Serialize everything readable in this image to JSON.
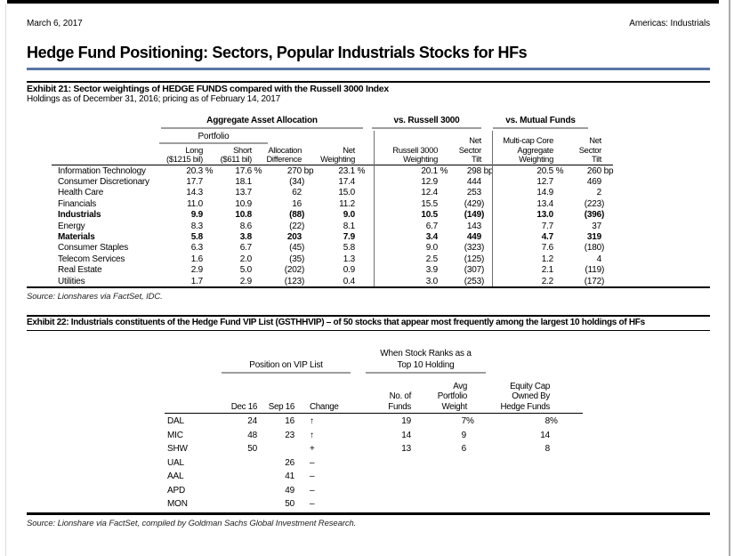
{
  "page": {
    "date": "March 6, 2017",
    "section": "Americas: Industrials",
    "title": "Hedge Fund Positioning: Sectors, Popular Industrials Stocks for HFs"
  },
  "colors": {
    "accent_rule": "#5b76a6",
    "rule_black": "#000000",
    "group_underline": "#9e9e9e"
  },
  "exhibit21": {
    "label": "Exhibit 21: Sector weightings of HEDGE FUNDS compared with the Russell 3000 Index",
    "subtitle": "Holdings as of December 31, 2016; pricing as of February 14, 2017",
    "groups": {
      "allocation": "Aggregate Asset Allocation",
      "portfolio": "Portfolio",
      "russell": "vs. Russell 3000",
      "mutual": "vs. Mutual Funds"
    },
    "col_headers": {
      "long": [
        "Long",
        "($1215 bil)"
      ],
      "short": [
        "Short",
        "($611 bil)"
      ],
      "alloc": [
        "Allocation",
        "Difference"
      ],
      "net": [
        "Net",
        "Weighting"
      ],
      "r3000": [
        "Russell 3000",
        "Weighting"
      ],
      "r3000_tilt": [
        "Net",
        "Sector",
        "Tilt"
      ],
      "mf": [
        "Multi-cap Core",
        "Aggregate",
        "Weighting"
      ],
      "mf_tilt": [
        "Net",
        "Sector",
        "Tilt"
      ]
    },
    "rows": [
      {
        "sector": "Information Technology",
        "bold": false,
        "values": [
          "20.3 %",
          "17.6 %",
          "270 bp",
          "23.1 %",
          "20.1 %",
          "298 bp",
          "20.5 %",
          "260 bp"
        ]
      },
      {
        "sector": "Consumer Discretionary",
        "bold": false,
        "values": [
          "17.7",
          "18.1",
          "(34)",
          "17.4",
          "12.9",
          "444",
          "12.7",
          "469"
        ]
      },
      {
        "sector": "Health Care",
        "bold": false,
        "values": [
          "14.3",
          "13.7",
          "62",
          "15.0",
          "12.4",
          "253",
          "14.9",
          "2"
        ]
      },
      {
        "sector": "Financials",
        "bold": false,
        "values": [
          "11.0",
          "10.9",
          "16",
          "11.2",
          "15.5",
          "(429)",
          "13.4",
          "(223)"
        ]
      },
      {
        "sector": "Industrials",
        "bold": true,
        "values": [
          "9.9",
          "10.8",
          "(88)",
          "9.0",
          "10.5",
          "(149)",
          "13.0",
          "(396)"
        ]
      },
      {
        "sector": "Energy",
        "bold": false,
        "values": [
          "8.3",
          "8.6",
          "(22)",
          "8.1",
          "6.7",
          "143",
          "7.7",
          "37"
        ]
      },
      {
        "sector": "Materials",
        "bold": true,
        "values": [
          "5.8",
          "3.8",
          "203",
          "7.9",
          "3.4",
          "449",
          "4.7",
          "319"
        ]
      },
      {
        "sector": "Consumer Staples",
        "bold": false,
        "values": [
          "6.3",
          "6.7",
          "(45)",
          "5.8",
          "9.0",
          "(323)",
          "7.6",
          "(180)"
        ]
      },
      {
        "sector": "Telecom Services",
        "bold": false,
        "values": [
          "1.6",
          "2.0",
          "(35)",
          "1.3",
          "2.5",
          "(125)",
          "1.2",
          "4"
        ]
      },
      {
        "sector": "Real Estate",
        "bold": false,
        "values": [
          "2.9",
          "5.0",
          "(202)",
          "0.9",
          "3.9",
          "(307)",
          "2.1",
          "(119)"
        ]
      },
      {
        "sector": "Utilities",
        "bold": false,
        "values": [
          "1.7",
          "2.9",
          "(123)",
          "0.4",
          "3.0",
          "(253)",
          "2.2",
          "(172)"
        ]
      }
    ],
    "source": "Source: Lionshares via FactSet, IDC."
  },
  "exhibit22": {
    "label": "Exhibit 22: Industrials constituents of the Hedge Fund VIP List (GSTHHVIP) – of 50 stocks that appear most frequently among the largest 10 holdings of HFs",
    "groups": {
      "top10_line1": "When Stock Ranks as a",
      "top10_line2": "Top 10 Holding",
      "vip": "Position on VIP List"
    },
    "col_headers": {
      "dec": [
        "Dec 16"
      ],
      "sep": [
        "Sep 16"
      ],
      "change": [
        "Change"
      ],
      "funds": [
        "No. of",
        "Funds"
      ],
      "weight": [
        "Avg",
        "Portfolio",
        "Weight"
      ],
      "equity": [
        "Equity Cap",
        "Owned By",
        "Hedge Funds"
      ]
    },
    "rows": [
      {
        "ticker": "DAL",
        "dec": "24",
        "sep": "16",
        "change": "↑",
        "funds": "19",
        "weight": "7%",
        "equity": "8%"
      },
      {
        "ticker": "MIC",
        "dec": "48",
        "sep": "23",
        "change": "↑",
        "funds": "14",
        "weight": "9",
        "equity": "14"
      },
      {
        "ticker": "SHW",
        "dec": "50",
        "sep": "",
        "change": "+",
        "funds": "13",
        "weight": "6",
        "equity": "8"
      },
      {
        "ticker": "UAL",
        "dec": "",
        "sep": "26",
        "change": "–",
        "funds": "",
        "weight": "",
        "equity": ""
      },
      {
        "ticker": "AAL",
        "dec": "",
        "sep": "41",
        "change": "–",
        "funds": "",
        "weight": "",
        "equity": ""
      },
      {
        "ticker": "APD",
        "dec": "",
        "sep": "49",
        "change": "–",
        "funds": "",
        "weight": "",
        "equity": ""
      },
      {
        "ticker": "MON",
        "dec": "",
        "sep": "50",
        "change": "–",
        "funds": "",
        "weight": "",
        "equity": ""
      }
    ],
    "source": "Source: Lionshare via FactSet, compiled by Goldman Sachs Global Investment Research."
  }
}
